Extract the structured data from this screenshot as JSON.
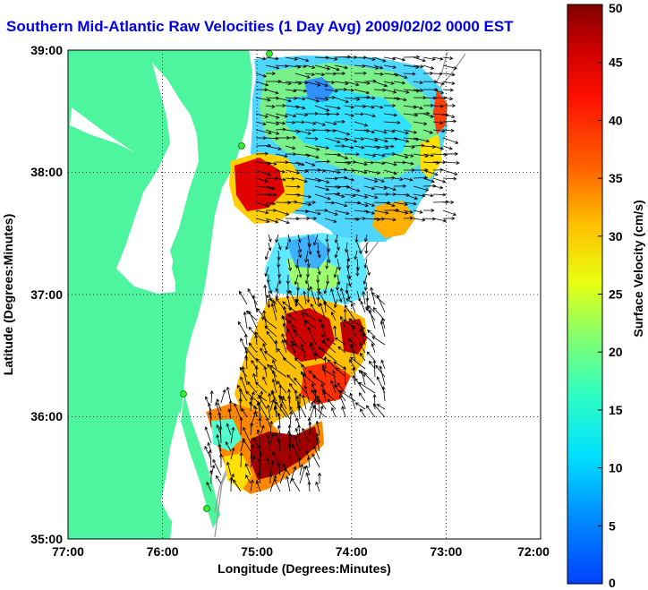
{
  "title": "Southern Mid-Atlantic Raw Velocities (1 Day Avg) 2009/02/02 0000 EST",
  "x_axis": {
    "label": "Longitude (Degrees:Minutes)",
    "ticks": [
      "77:00",
      "76:00",
      "75:00",
      "74:00",
      "73:00",
      "72:00"
    ]
  },
  "y_axis": {
    "label": "Latitude (Degrees:Minutes)",
    "ticks": [
      "35:00",
      "36:00",
      "37:00",
      "38:00",
      "39:00"
    ]
  },
  "colorbar": {
    "label": "Surface Velocity (cm/s)",
    "ticks": [
      "0",
      "5",
      "10",
      "15",
      "20",
      "25",
      "30",
      "35",
      "40",
      "45",
      "50"
    ],
    "min": 0,
    "max": 50
  },
  "map": {
    "lon_range": [
      -77,
      -72
    ],
    "lat_range": [
      35,
      39
    ],
    "land_color": "#4cf59e",
    "ocean_color": "#ffffff",
    "gridlines": "dotted"
  },
  "stations": [
    "radar-site",
    "radar-site",
    "radar-site",
    "radar-site"
  ],
  "colors": {
    "title": "#0000e6",
    "station": "#33ee33"
  }
}
